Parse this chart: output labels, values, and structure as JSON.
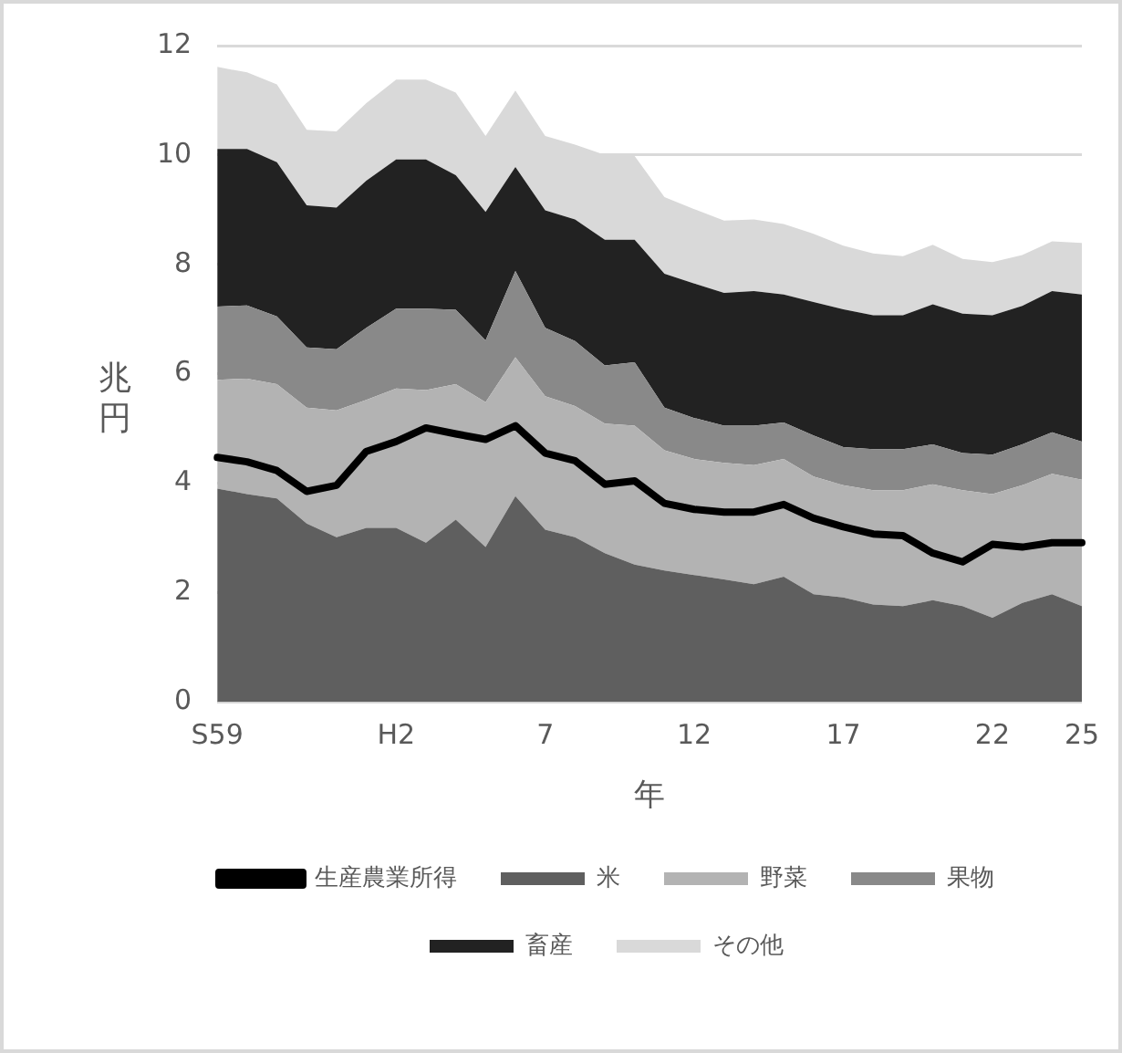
{
  "chart_data": {
    "type": "area",
    "stacked": true,
    "xlabel": "年",
    "ylabel": "兆円",
    "categories": [
      "S59",
      null,
      null,
      null,
      null,
      null,
      "H2",
      null,
      null,
      null,
      null,
      "7",
      null,
      null,
      null,
      null,
      "12",
      null,
      null,
      null,
      null,
      "17",
      null,
      null,
      null,
      null,
      "22",
      null,
      null,
      "25"
    ],
    "ylim": [
      0,
      12
    ],
    "yticks": [
      0,
      2,
      4,
      6,
      8,
      10,
      12
    ],
    "grid": "y",
    "legend": "bottom",
    "series": [
      {
        "name": "米",
        "color": "#5f5f5f",
        "values": [
          3.9,
          3.8,
          3.72,
          3.26,
          3.01,
          3.18,
          3.18,
          2.91,
          3.33,
          2.83,
          3.76,
          3.15,
          3.01,
          2.72,
          2.51,
          2.4,
          2.32,
          2.24,
          2.15,
          2.29,
          1.97,
          1.91,
          1.78,
          1.75,
          1.86,
          1.75,
          1.54,
          1.81,
          1.97,
          1.75
        ]
      },
      {
        "name": "野菜",
        "color": "#b3b3b3",
        "values": [
          1.99,
          2.11,
          2.09,
          2.12,
          2.32,
          2.34,
          2.55,
          2.79,
          2.48,
          2.65,
          2.54,
          2.44,
          2.4,
          2.37,
          2.54,
          2.2,
          2.12,
          2.13,
          2.18,
          2.15,
          2.15,
          2.05,
          2.09,
          2.12,
          2.12,
          2.12,
          2.26,
          2.15,
          2.2,
          2.31
        ]
      },
      {
        "name": "果物",
        "color": "#898989",
        "values": [
          1.34,
          1.34,
          1.24,
          1.1,
          1.12,
          1.32,
          1.46,
          1.49,
          1.36,
          1.13,
          1.58,
          1.25,
          1.19,
          1.06,
          1.16,
          0.78,
          0.75,
          0.68,
          0.72,
          0.67,
          0.75,
          0.7,
          0.75,
          0.75,
          0.73,
          0.68,
          0.72,
          0.75,
          0.76,
          0.7
        ]
      },
      {
        "name": "畜産",
        "color": "#222222",
        "values": [
          2.88,
          2.86,
          2.82,
          2.6,
          2.59,
          2.69,
          2.73,
          2.73,
          2.46,
          2.35,
          1.9,
          2.15,
          2.22,
          2.3,
          2.24,
          2.45,
          2.46,
          2.43,
          2.46,
          2.34,
          2.44,
          2.52,
          2.45,
          2.45,
          2.56,
          2.55,
          2.55,
          2.53,
          2.58,
          2.69
        ]
      },
      {
        "name": "その他",
        "color": "#d9d9d9",
        "values": [
          1.5,
          1.4,
          1.42,
          1.38,
          1.39,
          1.42,
          1.46,
          1.46,
          1.51,
          1.39,
          1.4,
          1.36,
          1.37,
          1.55,
          1.53,
          1.4,
          1.36,
          1.32,
          1.31,
          1.29,
          1.25,
          1.16,
          1.13,
          1.08,
          1.09,
          1.0,
          0.97,
          0.93,
          0.91,
          0.94
        ]
      },
      {
        "name": "生産農業所得",
        "type": "line",
        "color": "#000000",
        "values": [
          4.47,
          4.39,
          4.23,
          3.85,
          3.96,
          4.58,
          4.76,
          5.01,
          4.9,
          4.8,
          5.05,
          4.55,
          4.41,
          3.98,
          4.04,
          3.63,
          3.52,
          3.47,
          3.47,
          3.61,
          3.36,
          3.2,
          3.07,
          3.04,
          2.72,
          2.56,
          2.88,
          2.83,
          2.91,
          2.91
        ]
      }
    ]
  }
}
